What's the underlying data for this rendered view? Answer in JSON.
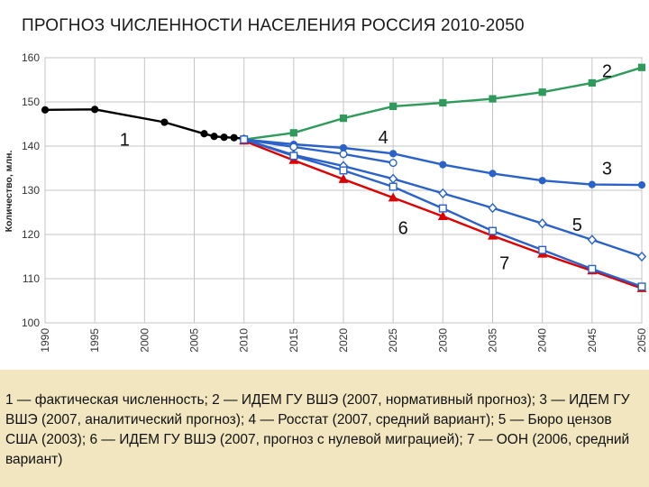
{
  "title": "ПРОГНОЗ ЧИСЛЕННОСТИ НАСЕЛЕНИЯ РОССИЯ 2010-2050",
  "caption": "1 — фактическая численность; 2 — ИДЕМ ГУ ВШЭ (2007, нормативный прогноз); 3 — ИДЕМ ГУ ВШЭ (2007, аналитический прогноз); 4 — Росстат (2007, средний вариант); 5 — Бюро цензов США (2003); 6 — ИДЕМ ГУ ВШЭ (2007, прогноз с нулевой миграцией); 7 — ООН (2006, средний вариант)",
  "chart_data": {
    "type": "line",
    "ylabel": "Количество, млн.",
    "xlim": [
      1990,
      2050
    ],
    "ylim": [
      100,
      160
    ],
    "x_ticks": [
      1990,
      1995,
      2000,
      2005,
      2010,
      2015,
      2020,
      2025,
      2030,
      2035,
      2040,
      2045,
      2050
    ],
    "y_ticks": [
      100,
      110,
      120,
      130,
      140,
      150,
      160
    ],
    "grid": true,
    "series": [
      {
        "name": "1",
        "color": "#000000",
        "marker": "circle",
        "x": [
          1990,
          1995,
          2002,
          2006,
          2007,
          2008,
          2009,
          2010
        ],
        "y": [
          148.2,
          148.3,
          145.4,
          142.8,
          142.2,
          142.0,
          141.9,
          141.7
        ]
      },
      {
        "name": "2",
        "color": "#2e9a5b",
        "marker": "square",
        "x": [
          2010,
          2015,
          2020,
          2025,
          2030,
          2035,
          2040,
          2045,
          2050
        ],
        "y": [
          141.5,
          143.0,
          146.3,
          149.0,
          149.8,
          150.7,
          152.2,
          154.3,
          157.8
        ]
      },
      {
        "name": "3",
        "color": "#2a62c9",
        "marker": "circle",
        "x": [
          2010,
          2015,
          2020,
          2025,
          2030,
          2035,
          2040,
          2045,
          2050
        ],
        "y": [
          141.5,
          140.4,
          139.6,
          138.3,
          135.8,
          133.8,
          132.2,
          131.3,
          131.2
        ]
      },
      {
        "name": "4",
        "color": "#2a62c9",
        "marker": "circle-open",
        "x": [
          2010,
          2015,
          2020,
          2025
        ],
        "y": [
          141.5,
          139.8,
          138.2,
          136.2
        ]
      },
      {
        "name": "5",
        "color": "#2a62c9",
        "marker": "diamond-open",
        "x": [
          2010,
          2015,
          2020,
          2025,
          2030,
          2035,
          2040,
          2045,
          2050
        ],
        "y": [
          141.5,
          138.0,
          135.5,
          132.6,
          129.3,
          126.0,
          122.5,
          118.8,
          115.0
        ]
      },
      {
        "name": "6",
        "color": "#dd0000",
        "marker": "triangle",
        "x": [
          2010,
          2015,
          2020,
          2025,
          2030,
          2035,
          2040,
          2045,
          2050
        ],
        "y": [
          141.2,
          136.8,
          132.5,
          128.3,
          124.1,
          119.7,
          115.6,
          111.8,
          107.8
        ]
      },
      {
        "name": "7",
        "color": "#2a62c9",
        "marker": "square-open",
        "x": [
          2010,
          2015,
          2020,
          2025,
          2030,
          2035,
          2040,
          2045,
          2050
        ],
        "y": [
          141.5,
          137.8,
          134.5,
          130.8,
          125.9,
          120.8,
          116.5,
          112.2,
          108.2
        ]
      }
    ],
    "annotations": [
      {
        "text": "1",
        "x": 1998,
        "y": 141.5
      },
      {
        "text": "2",
        "x": 2046.5,
        "y": 157
      },
      {
        "text": "4",
        "x": 2024,
        "y": 142
      },
      {
        "text": "3",
        "x": 2046.5,
        "y": 135
      },
      {
        "text": "6",
        "x": 2026,
        "y": 121.5
      },
      {
        "text": "5",
        "x": 2043.5,
        "y": 122.2
      },
      {
        "text": "7",
        "x": 2036.2,
        "y": 113.6
      }
    ]
  }
}
